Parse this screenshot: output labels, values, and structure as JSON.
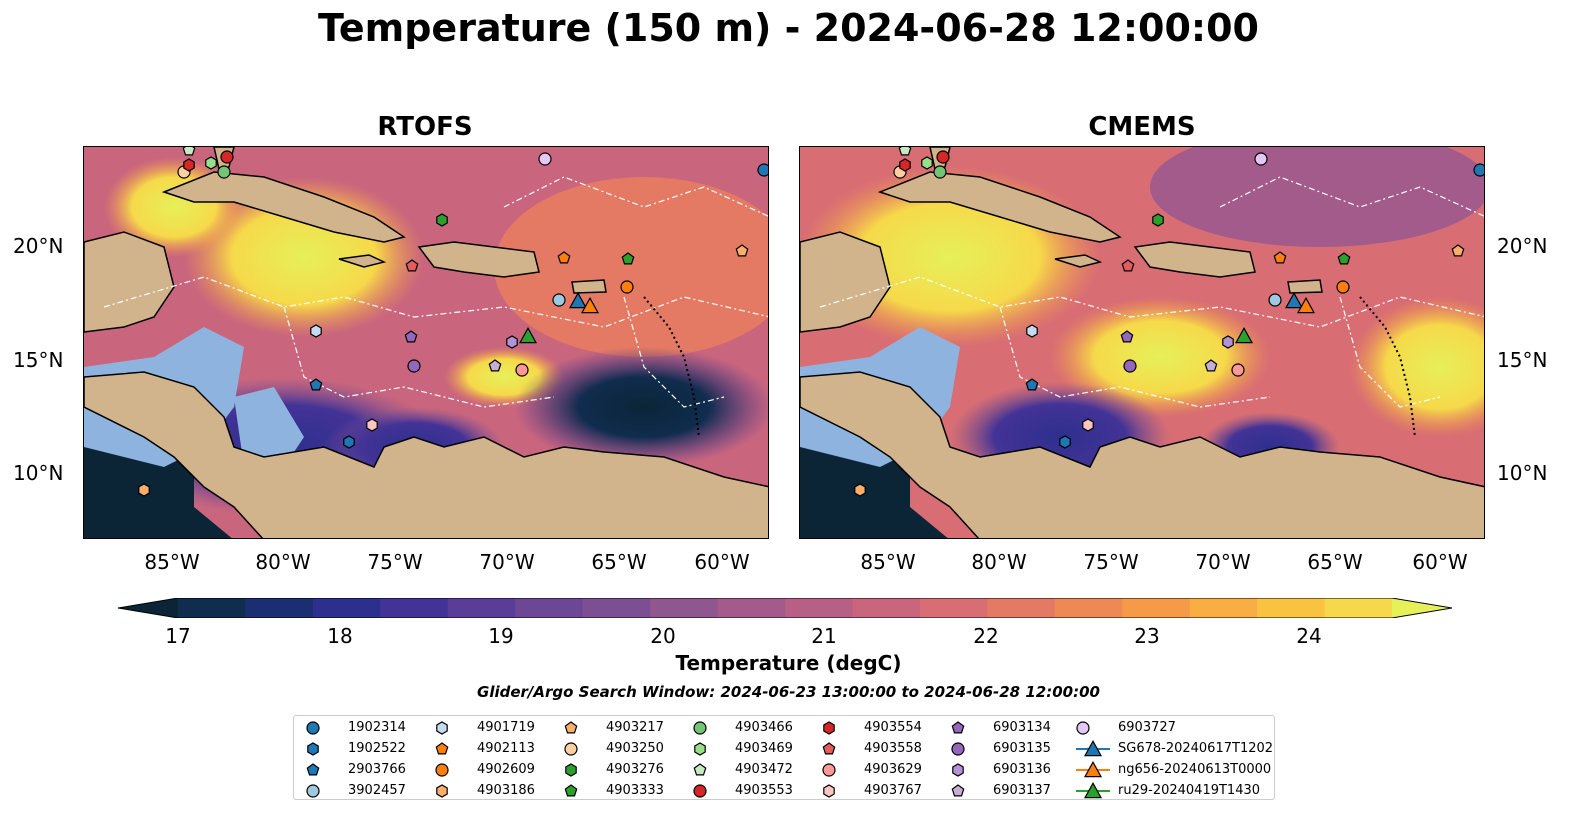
{
  "figure": {
    "title": "Temperature (150 m) - 2024-06-28 12:00:00",
    "panels": [
      {
        "title": "RTOFS"
      },
      {
        "title": "CMEMS"
      }
    ],
    "lat_labels": [
      "20°N",
      "15°N",
      "10°N"
    ],
    "lon_labels": [
      "85°W",
      "80°W",
      "75°W",
      "70°W",
      "65°W",
      "60°W"
    ],
    "colorbar": {
      "title": "Temperature (degC)",
      "tick_labels": [
        "17",
        "18",
        "19",
        "20",
        "21",
        "22",
        "23",
        "24"
      ],
      "min": 16.5,
      "max": 24.5,
      "step": 0.5,
      "colors": [
        "#0b2537",
        "#102c4e",
        "#1c2e72",
        "#2d2f8e",
        "#433396",
        "#5a3d98",
        "#6c4796",
        "#7d4f92",
        "#8f5690",
        "#a35b8c",
        "#b85f86",
        "#c9667e",
        "#d86e73",
        "#e47964",
        "#ee8854",
        "#f59a47",
        "#f8ae42",
        "#f9c33f",
        "#f6d94a",
        "#e6f059"
      ]
    },
    "search_window": "Glider/Argo Search Window: 2024-06-23 13:00:00 to 2024-06-28 12:00:00"
  },
  "legend": {
    "items": [
      {
        "label": "1902314",
        "marker": "circle",
        "color": "#1f77b4"
      },
      {
        "label": "1902522",
        "marker": "hexagon",
        "color": "#1f77b4"
      },
      {
        "label": "2903766",
        "marker": "pentagon",
        "color": "#1f77b4"
      },
      {
        "label": "3902457",
        "marker": "circle",
        "color": "#9ecae1"
      },
      {
        "label": "4901719",
        "marker": "hexagon",
        "color": "#c6dbef"
      },
      {
        "label": "4902113",
        "marker": "pentagon",
        "color": "#ff7f0e"
      },
      {
        "label": "4902609",
        "marker": "circle",
        "color": "#ff7f0e"
      },
      {
        "label": "4903186",
        "marker": "hexagon",
        "color": "#fdae6b"
      },
      {
        "label": "4903217",
        "marker": "pentagon",
        "color": "#fdae6b"
      },
      {
        "label": "4903250",
        "marker": "circle",
        "color": "#fdd0a2"
      },
      {
        "label": "4903276",
        "marker": "hexagon",
        "color": "#2ca02c"
      },
      {
        "label": "4903333",
        "marker": "pentagon",
        "color": "#2ca02c"
      },
      {
        "label": "4903466",
        "marker": "circle",
        "color": "#74c476"
      },
      {
        "label": "4903469",
        "marker": "hexagon",
        "color": "#98df8a"
      },
      {
        "label": "4903472",
        "marker": "pentagon",
        "color": "#c7e9c0"
      },
      {
        "label": "4903553",
        "marker": "circle",
        "color": "#d62728"
      },
      {
        "label": "4903554",
        "marker": "hexagon",
        "color": "#d62728"
      },
      {
        "label": "4903558",
        "marker": "pentagon",
        "color": "#e35d5e"
      },
      {
        "label": "4903629",
        "marker": "circle",
        "color": "#ff9896"
      },
      {
        "label": "4903767",
        "marker": "hexagon",
        "color": "#fcc5c0"
      },
      {
        "label": "6903134",
        "marker": "pentagon",
        "color": "#9467bd"
      },
      {
        "label": "6903135",
        "marker": "circle",
        "color": "#9467bd"
      },
      {
        "label": "6903136",
        "marker": "hexagon",
        "color": "#b294d6"
      },
      {
        "label": "6903137",
        "marker": "pentagon",
        "color": "#c5b0d5"
      },
      {
        "label": "6903727",
        "marker": "circle",
        "color": "#e3c7f5"
      },
      {
        "label": "SG678-20240617T1202",
        "marker": "triangle",
        "color": "#1f77b4"
      },
      {
        "label": "ng656-20240613T0000",
        "marker": "triangle",
        "color": "#ff7f0e"
      },
      {
        "label": "ru29-20240419T1430",
        "marker": "triangle",
        "color": "#2ca02c"
      }
    ]
  }
}
